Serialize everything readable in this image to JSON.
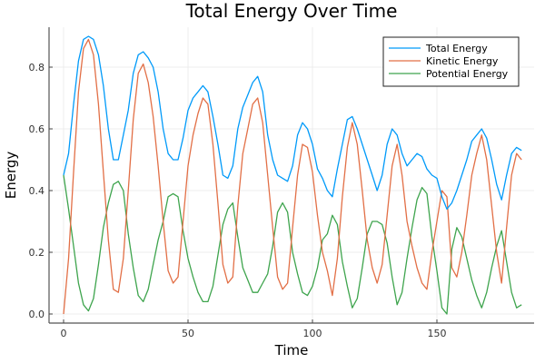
{
  "chart_data": {
    "type": "line",
    "title": "Total Energy Over Time",
    "xlabel": "Time",
    "ylabel": "Energy",
    "xlim": [
      -5,
      189
    ],
    "ylim": [
      -0.02,
      0.93
    ],
    "xticks": [
      0,
      50,
      100,
      150
    ],
    "xtick_labels": [
      "0",
      "50",
      "100",
      "150"
    ],
    "yticks": [
      0.0,
      0.2,
      0.4,
      0.6,
      0.8
    ],
    "ytick_labels": [
      "0.0",
      "0.2",
      "0.4",
      "0.6",
      "0.8"
    ],
    "grid": true,
    "legend_position": "top-right",
    "x": [
      0,
      2,
      4,
      6,
      8,
      10,
      12,
      14,
      16,
      18,
      20,
      22,
      24,
      26,
      28,
      30,
      32,
      34,
      36,
      38,
      40,
      42,
      44,
      46,
      48,
      50,
      52,
      54,
      56,
      58,
      60,
      62,
      64,
      66,
      68,
      70,
      72,
      74,
      76,
      78,
      80,
      82,
      84,
      86,
      88,
      90,
      92,
      94,
      96,
      98,
      100,
      102,
      104,
      106,
      108,
      110,
      112,
      114,
      116,
      118,
      120,
      122,
      124,
      126,
      128,
      130,
      132,
      134,
      136,
      138,
      140,
      142,
      144,
      146,
      148,
      150,
      152,
      154,
      156,
      158,
      160,
      162,
      164,
      166,
      168,
      170,
      172,
      174,
      176,
      178,
      180,
      182,
      184
    ],
    "series": [
      {
        "name": "Total Energy",
        "color": "#009af9",
        "values": [
          0.45,
          0.52,
          0.68,
          0.82,
          0.89,
          0.9,
          0.89,
          0.84,
          0.74,
          0.6,
          0.5,
          0.5,
          0.58,
          0.66,
          0.78,
          0.84,
          0.85,
          0.83,
          0.8,
          0.72,
          0.6,
          0.52,
          0.5,
          0.5,
          0.57,
          0.66,
          0.7,
          0.72,
          0.74,
          0.72,
          0.64,
          0.55,
          0.45,
          0.44,
          0.48,
          0.6,
          0.67,
          0.71,
          0.75,
          0.77,
          0.72,
          0.58,
          0.5,
          0.45,
          0.44,
          0.43,
          0.48,
          0.58,
          0.62,
          0.6,
          0.55,
          0.47,
          0.44,
          0.4,
          0.38,
          0.47,
          0.55,
          0.63,
          0.64,
          0.6,
          0.55,
          0.5,
          0.45,
          0.4,
          0.45,
          0.55,
          0.6,
          0.58,
          0.52,
          0.48,
          0.5,
          0.52,
          0.51,
          0.47,
          0.45,
          0.44,
          0.38,
          0.34,
          0.36,
          0.4,
          0.45,
          0.5,
          0.56,
          0.58,
          0.6,
          0.57,
          0.5,
          0.42,
          0.37,
          0.45,
          0.52,
          0.54,
          0.53
        ]
      },
      {
        "name": "Kinetic Energy",
        "color": "#e26f46",
        "values": [
          0.0,
          0.18,
          0.46,
          0.72,
          0.86,
          0.89,
          0.84,
          0.68,
          0.46,
          0.24,
          0.08,
          0.07,
          0.18,
          0.4,
          0.63,
          0.78,
          0.81,
          0.75,
          0.64,
          0.48,
          0.3,
          0.14,
          0.1,
          0.12,
          0.3,
          0.48,
          0.58,
          0.65,
          0.7,
          0.68,
          0.55,
          0.36,
          0.16,
          0.1,
          0.12,
          0.35,
          0.52,
          0.6,
          0.68,
          0.7,
          0.62,
          0.45,
          0.28,
          0.12,
          0.08,
          0.1,
          0.28,
          0.45,
          0.55,
          0.54,
          0.46,
          0.32,
          0.2,
          0.14,
          0.06,
          0.18,
          0.38,
          0.54,
          0.62,
          0.55,
          0.4,
          0.24,
          0.15,
          0.1,
          0.16,
          0.32,
          0.48,
          0.55,
          0.45,
          0.3,
          0.22,
          0.15,
          0.1,
          0.08,
          0.2,
          0.3,
          0.4,
          0.38,
          0.15,
          0.12,
          0.2,
          0.32,
          0.45,
          0.52,
          0.58,
          0.5,
          0.35,
          0.2,
          0.1,
          0.28,
          0.45,
          0.52,
          0.5
        ]
      },
      {
        "name": "Potential Energy",
        "color": "#3ea44d",
        "values": [
          0.45,
          0.34,
          0.22,
          0.1,
          0.03,
          0.01,
          0.05,
          0.16,
          0.28,
          0.36,
          0.42,
          0.43,
          0.4,
          0.26,
          0.15,
          0.06,
          0.04,
          0.08,
          0.16,
          0.24,
          0.3,
          0.38,
          0.39,
          0.38,
          0.27,
          0.18,
          0.12,
          0.07,
          0.04,
          0.04,
          0.09,
          0.19,
          0.29,
          0.34,
          0.36,
          0.25,
          0.15,
          0.11,
          0.07,
          0.07,
          0.1,
          0.13,
          0.22,
          0.33,
          0.36,
          0.33,
          0.2,
          0.13,
          0.07,
          0.06,
          0.09,
          0.15,
          0.24,
          0.26,
          0.32,
          0.29,
          0.17,
          0.09,
          0.02,
          0.05,
          0.15,
          0.26,
          0.3,
          0.3,
          0.29,
          0.23,
          0.12,
          0.03,
          0.07,
          0.18,
          0.28,
          0.37,
          0.41,
          0.39,
          0.25,
          0.14,
          0.02,
          0.0,
          0.21,
          0.28,
          0.25,
          0.18,
          0.11,
          0.06,
          0.02,
          0.07,
          0.15,
          0.22,
          0.27,
          0.17,
          0.07,
          0.02,
          0.03
        ]
      }
    ]
  }
}
